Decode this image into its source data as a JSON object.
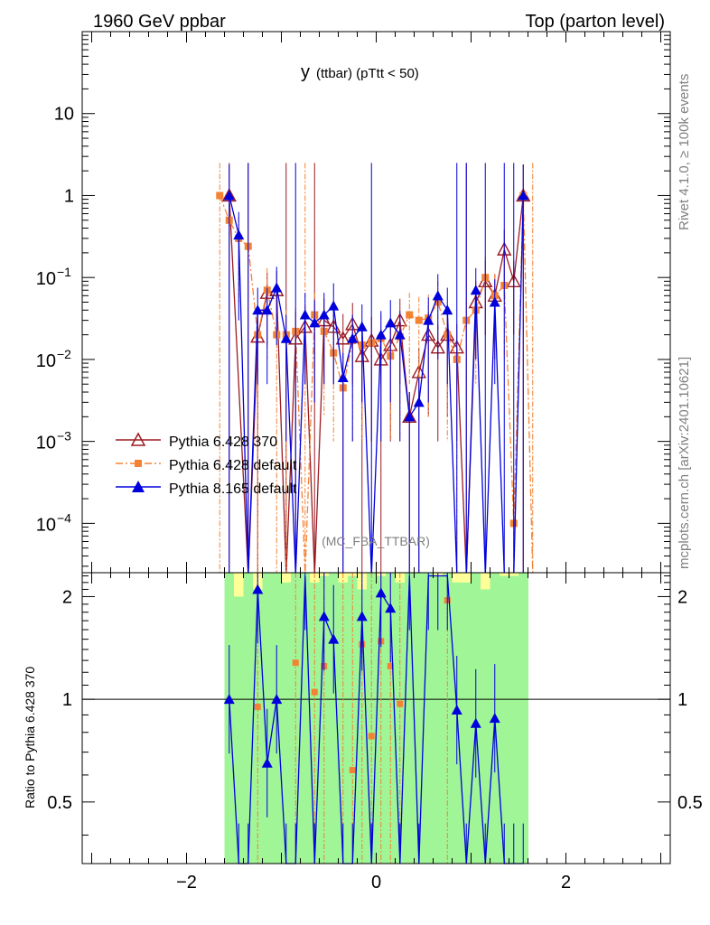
{
  "header": {
    "left_title": "1960 GeV ppbar",
    "right_title": "Top (parton level)"
  },
  "plot_title": {
    "main": "y",
    "sub": "(ttbar)  (pTtt < 50)"
  },
  "analysis_tag": "(MC_FBA_TTBAR)",
  "side_labels": {
    "rivet": "Rivet 4.1.0, ≥ 100k events",
    "mcplots": "mcplots.cern.ch [arXiv:2401.10621]"
  },
  "ratio_ylabel": "Ratio to Pythia 6.428 370",
  "colors": {
    "p6_370": "#9b1b22",
    "p6_default": "#f58233",
    "p8_default": "#0000dd",
    "band_inner": "#a0f597",
    "band_outer": "#ffff99"
  },
  "chart_data": {
    "type": "line",
    "xlim": [
      -3.1,
      3.1
    ],
    "ylim_main": [
      2.5e-05,
      100
    ],
    "ylim_ratio": [
      0.33,
      2.35
    ],
    "x_ticks": [
      "−2",
      "0",
      "2"
    ],
    "x_tick_values": [
      -2,
      0,
      2
    ],
    "main_y_ticks": [
      {
        "base": "10",
        "exp": "",
        "value": 10
      },
      {
        "base": "1",
        "exp": "",
        "value": 1
      },
      {
        "base": "10",
        "exp": "−1",
        "value": 0.1
      },
      {
        "base": "10",
        "exp": "−2",
        "value": 0.01
      },
      {
        "base": "10",
        "exp": "−3",
        "value": 0.001
      },
      {
        "base": "10",
        "exp": "−4",
        "value": 0.0001
      }
    ],
    "ratio_y_ticks": [
      "0.5",
      "1",
      "2"
    ],
    "ratio_y_tick_values": [
      0.5,
      1,
      2
    ],
    "series": [
      {
        "name": "Pythia 6.428 370",
        "style": "open-triangle-solid",
        "x": [
          -1.55,
          -1.35,
          -1.25,
          -1.15,
          -1.05,
          -0.95,
          -0.85,
          -0.75,
          -0.65,
          -0.55,
          -0.45,
          -0.35,
          -0.25,
          -0.15,
          -0.05,
          0.05,
          0.15,
          0.25,
          0.35,
          0.45,
          0.55,
          0.65,
          0.75,
          0.85,
          0.95,
          1.05,
          1.15,
          1.25,
          1.35,
          1.45,
          1.55
        ],
        "y": [
          1.0,
          0.0,
          0.019,
          0.065,
          0.07,
          0.0,
          0.018,
          0.025,
          0.0,
          0.03,
          0.025,
          0.018,
          0.027,
          0.011,
          0.017,
          0.01,
          0.015,
          0.03,
          0.002,
          0.007,
          0.02,
          0.014,
          0.02,
          0.014,
          0.0,
          0.05,
          0.09,
          0.06,
          0.22,
          0.09,
          1.0
        ],
        "err": [
          1.5,
          0,
          0.02,
          0.05,
          0.05,
          0,
          0.02,
          0.02,
          0,
          0.025,
          0.02,
          0.018,
          0.022,
          0.011,
          0.016,
          0.01,
          0.014,
          0.025,
          0.002,
          0.007,
          0.018,
          0.013,
          0.018,
          0.013,
          0,
          0.04,
          0.07,
          0.05,
          0.16,
          0.07,
          1.4
        ]
      },
      {
        "name": "Pythia 6.428 default",
        "style": "square-dashdot",
        "x": [
          -1.65,
          -1.55,
          -1.45,
          -1.35,
          -1.25,
          -1.15,
          -1.05,
          -0.95,
          -0.85,
          -0.75,
          -0.65,
          -0.55,
          -0.45,
          -0.35,
          -0.25,
          -0.15,
          -0.05,
          0.05,
          0.15,
          0.25,
          0.35,
          0.45,
          0.55,
          0.65,
          0.75,
          0.85,
          0.95,
          1.05,
          1.15,
          1.25,
          1.35,
          1.45,
          1.55,
          1.65
        ],
        "y": [
          1.0,
          0.5,
          0.3,
          0.24,
          0.02,
          0.07,
          0.02,
          0.02,
          0.022,
          0.0,
          0.035,
          0.022,
          0.012,
          0.0045,
          0.017,
          0.015,
          0.016,
          0.018,
          0.011,
          0.019,
          0.035,
          0.03,
          0.032,
          0.05,
          0.02,
          0.01,
          0.03,
          0.04,
          0.1,
          0.06,
          0.08,
          0.0001,
          1.0,
          0.0
        ],
        "err": [
          1.5,
          0.4,
          0.25,
          0.2,
          0.02,
          0.06,
          0.02,
          0.02,
          0.02,
          0,
          0.03,
          0.02,
          0.011,
          0.0044,
          0.016,
          0.014,
          0.015,
          0.017,
          0.01,
          0.018,
          0.03,
          0.028,
          0.03,
          0.04,
          0.019,
          0.01,
          0.028,
          0.035,
          0.08,
          0.05,
          0.07,
          0.0001,
          1.4,
          0
        ]
      },
      {
        "name": "Pythia 8.165 default",
        "style": "filled-triangle-solid",
        "x": [
          -1.55,
          -1.45,
          -1.35,
          -1.25,
          -1.15,
          -1.05,
          -0.95,
          -0.85,
          -0.75,
          -0.65,
          -0.55,
          -0.45,
          -0.35,
          -0.25,
          -0.15,
          -0.05,
          0.05,
          0.15,
          0.25,
          0.35,
          0.45,
          0.55,
          0.65,
          0.75,
          0.85,
          0.95,
          1.05,
          1.15,
          1.25,
          1.35,
          1.45,
          1.55
        ],
        "y": [
          1.0,
          0.33,
          0.0,
          0.04,
          0.04,
          0.075,
          0.018,
          0.0,
          0.035,
          0.028,
          0.035,
          0.045,
          0.006,
          0.018,
          0.025,
          0.0,
          0.02,
          0.028,
          0.02,
          0.002,
          0.003,
          0.03,
          0.06,
          0.04,
          0.0,
          0.0,
          0.07,
          0.0,
          0.05,
          0.0,
          0.0,
          1.0
        ],
        "err": [
          1.4,
          0.3,
          0,
          0.035,
          0.035,
          0.06,
          0.017,
          0,
          0.03,
          0.025,
          0.03,
          0.04,
          0.006,
          0.017,
          0.022,
          0,
          0.019,
          0.025,
          0.019,
          0.002,
          0.003,
          0.027,
          0.05,
          0.035,
          0,
          0,
          0.06,
          0,
          0.045,
          0,
          0,
          1.4
        ]
      }
    ],
    "ratio_series": [
      {
        "name": "Pythia 6.428 default / Pythia 6.428 370",
        "x": [
          -1.25,
          -0.85,
          -0.65,
          -0.55,
          -0.35,
          -0.25,
          -0.15,
          -0.05,
          0.05,
          0.15,
          0.25,
          0.75
        ],
        "y": [
          0.95,
          1.28,
          1.05,
          1.25,
          0.3,
          0.62,
          1.45,
          0.78,
          1.48,
          1.25,
          0.97,
          1.95
        ]
      },
      {
        "name": "Pythia 8.165 default / Pythia 6.428 370",
        "x": [
          -1.55,
          -1.45,
          -1.35,
          -1.25,
          -1.15,
          -1.05,
          -0.95,
          -0.85,
          -0.75,
          -0.65,
          -0.55,
          -0.45,
          -0.35,
          -0.25,
          -0.15,
          -0.05,
          0.05,
          0.15,
          0.25,
          0.35,
          0.45,
          0.55,
          0.65,
          0.75,
          0.85,
          0.95,
          1.05,
          1.15,
          1.25,
          1.35,
          1.45,
          1.55
        ],
        "y": [
          1.0,
          0.3,
          0.3,
          2.1,
          0.65,
          1.0,
          0.3,
          0.3,
          2.3,
          0.3,
          1.75,
          1.5,
          0.3,
          0.3,
          1.75,
          0.3,
          2.05,
          1.85,
          0.3,
          2.3,
          0.3,
          2.3,
          2.3,
          2.3,
          0.93,
          0.3,
          0.85,
          0.3,
          0.88,
          0.3,
          0.3,
          0.3
        ]
      }
    ],
    "bands": {
      "x_range": [
        -1.6,
        1.6
      ],
      "inner_top": [
        2.4,
        2.0,
        2.4,
        2.1,
        2.4,
        2.4,
        2.2,
        2.4,
        2.4,
        2.2,
        2.3,
        2.4,
        2.2,
        2.3,
        2.1,
        2.4,
        2.3,
        2.4,
        2.2,
        2.4,
        2.4,
        2.4,
        2.3,
        2.4,
        2.2,
        2.2,
        2.4,
        2.1,
        2.4,
        2.3,
        2.3,
        2.4
      ],
      "outer_top": [
        2.4,
        2.4,
        2.4,
        2.4,
        2.4,
        2.4,
        2.4,
        2.4,
        2.4,
        2.4,
        2.4,
        2.4,
        2.4,
        2.4,
        2.4,
        2.4,
        2.4,
        2.4,
        2.4,
        2.4,
        2.4,
        2.4,
        2.4,
        2.4,
        2.4,
        2.4,
        2.4,
        2.4,
        2.4,
        2.4,
        2.4,
        2.4
      ]
    }
  }
}
